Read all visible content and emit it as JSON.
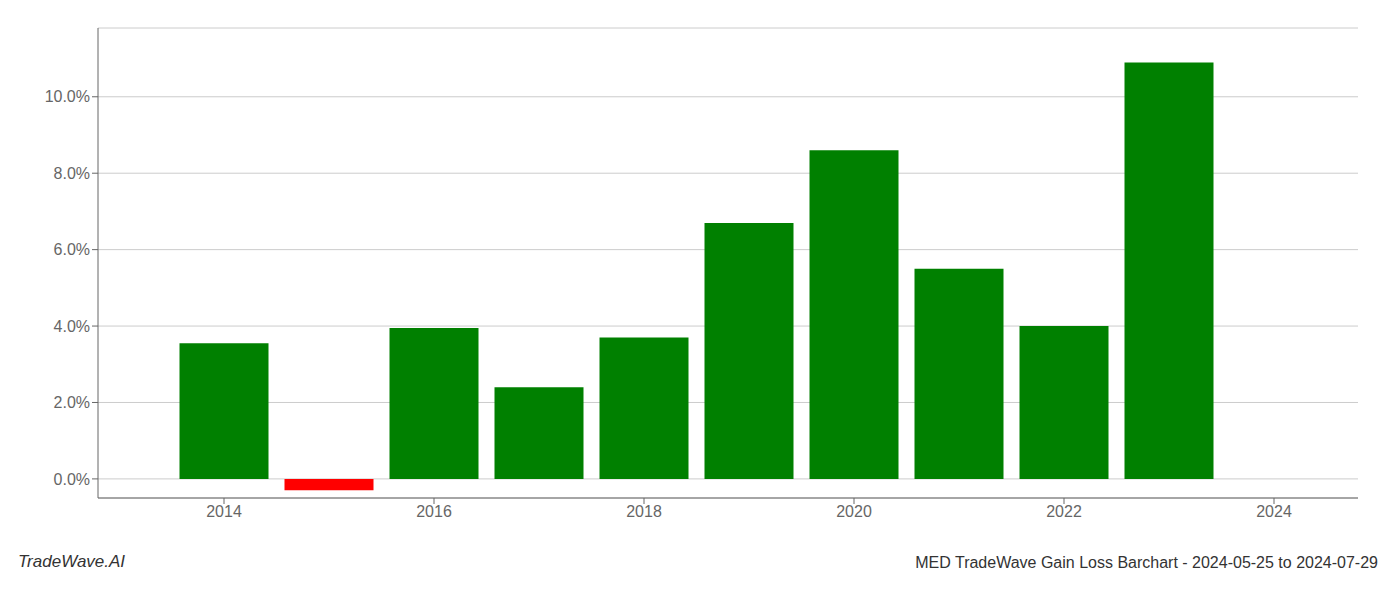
{
  "chart_data": {
    "type": "bar",
    "title": "MED TradeWave Gain Loss Barchart - 2024-05-25 to 2024-07-29",
    "annotations": [
      "TradeWave.AI"
    ],
    "x": [
      2014,
      2015,
      2016,
      2017,
      2018,
      2019,
      2020,
      2021,
      2022,
      2023
    ],
    "values": [
      0.0355,
      -0.003,
      0.0395,
      0.024,
      0.037,
      0.067,
      0.086,
      0.055,
      0.04,
      0.109
    ],
    "colors": [
      "#008000",
      "#ff0000",
      "#008000",
      "#008000",
      "#008000",
      "#008000",
      "#008000",
      "#008000",
      "#008000",
      "#008000"
    ],
    "xlim": [
      2012.8,
      2024.8
    ],
    "xticks": [
      2014,
      2016,
      2018,
      2020,
      2022,
      2024
    ],
    "ylim": [
      -0.005,
      0.118
    ],
    "yticks": [
      {
        "value": 0.0,
        "label": "0.0%"
      },
      {
        "value": 0.02,
        "label": "2.0%"
      },
      {
        "value": 0.04,
        "label": "4.0%"
      },
      {
        "value": 0.06,
        "label": "6.0%"
      },
      {
        "value": 0.08,
        "label": "8.0%"
      },
      {
        "value": 0.1,
        "label": "10.0%"
      }
    ],
    "grid": true
  }
}
